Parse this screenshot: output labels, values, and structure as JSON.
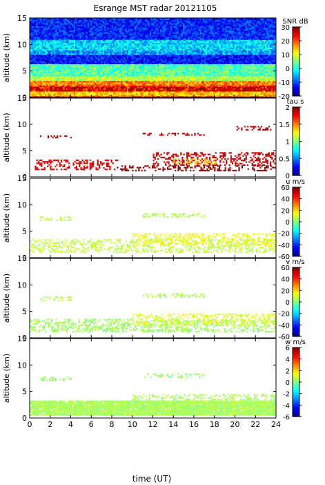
{
  "figure": {
    "title": "Esrange MST radar 20121105",
    "xlabel": "time (UT)"
  },
  "chart_data": [
    {
      "type": "heatmap",
      "quantity": "SNR",
      "colorbar_label": "SNR dB",
      "ylabel": "altitude (km)",
      "xlim": [
        0,
        24
      ],
      "ylim": [
        0,
        15
      ],
      "clim": [
        -20,
        30
      ],
      "colorbar_ticks": [
        "30",
        "20",
        "10",
        "0",
        "-10",
        "-20"
      ],
      "x_ticks": [
        "0",
        "2",
        "4",
        "6",
        "8",
        "10",
        "12",
        "14",
        "16",
        "18",
        "20",
        "22",
        "24"
      ],
      "y_ticks": [
        "0",
        "5",
        "10",
        "15"
      ],
      "colormap": "jet",
      "fill": "dense",
      "layers": [
        {
          "y_from": 0.4,
          "y_to": 1.2,
          "value": 14
        },
        {
          "y_from": 1.2,
          "y_to": 2.3,
          "value": 22
        },
        {
          "y_from": 2.3,
          "y_to": 3.2,
          "value": 17
        },
        {
          "y_from": 3.2,
          "y_to": 4.0,
          "value": 8
        },
        {
          "y_from": 4.0,
          "y_to": 6.2,
          "value": 3
        },
        {
          "y_from": 6.2,
          "y_to": 8.0,
          "value": -13
        },
        {
          "y_from": 8.0,
          "y_to": 8.8,
          "value": -6
        },
        {
          "y_from": 8.8,
          "y_to": 11.0,
          "value": -3
        },
        {
          "y_from": 11.0,
          "y_to": 15.0,
          "value": -12
        }
      ],
      "highlights": [
        {
          "x_from": 0,
          "x_to": 24,
          "y_from": 1.2,
          "y_to": 2.0,
          "value": 28
        }
      ]
    },
    {
      "type": "heatmap",
      "quantity": "tau",
      "colorbar_label": "tau s",
      "ylabel": "altitude (km)",
      "xlim": [
        0,
        24
      ],
      "ylim": [
        0,
        15
      ],
      "clim": [
        0,
        2
      ],
      "colorbar_ticks": [
        "2",
        "1.5",
        "1",
        "0.5",
        "0"
      ],
      "x_ticks": [
        "0",
        "2",
        "4",
        "6",
        "8",
        "10",
        "12",
        "14",
        "16",
        "18",
        "20",
        "22",
        "24"
      ],
      "y_ticks": [
        "0",
        "5",
        "10",
        "15"
      ],
      "colormap": "jet",
      "fill": "sparse",
      "layers": [
        {
          "y_from": 1.2,
          "y_to": 2.2,
          "x_from": 8.5,
          "x_to": 24,
          "value": 1.95
        },
        {
          "y_from": 1.4,
          "y_to": 3.3,
          "x_from": 0.5,
          "x_to": 8.5,
          "value": 1.8
        },
        {
          "y_from": 2.2,
          "y_to": 4.7,
          "x_from": 12,
          "x_to": 24,
          "value": 1.85
        },
        {
          "y_from": 2.5,
          "y_to": 3.5,
          "x_from": 14,
          "x_to": 18,
          "value": 1.35
        },
        {
          "y_from": 7.4,
          "y_to": 7.9,
          "x_from": 1,
          "x_to": 4,
          "value": 1.9
        },
        {
          "y_from": 7.9,
          "y_to": 8.4,
          "x_from": 11,
          "x_to": 17,
          "value": 1.9
        },
        {
          "y_from": 8.9,
          "y_to": 9.7,
          "x_from": 20,
          "x_to": 23.5,
          "value": 1.9
        }
      ]
    },
    {
      "type": "heatmap",
      "quantity": "u",
      "colorbar_label": "u m/s",
      "ylabel": "altitude (km)",
      "xlim": [
        0,
        24
      ],
      "ylim": [
        0,
        15
      ],
      "clim": [
        -60,
        60
      ],
      "colorbar_ticks": [
        "60",
        "40",
        "20",
        "0",
        "-20",
        "-40",
        "-60"
      ],
      "x_ticks": [
        "0",
        "2",
        "4",
        "6",
        "8",
        "10",
        "12",
        "14",
        "16",
        "18",
        "20",
        "22",
        "24"
      ],
      "y_ticks": [
        "0",
        "5",
        "10",
        "15"
      ],
      "colormap": "jet",
      "fill": "sparse",
      "layers": [
        {
          "y_from": 1.0,
          "y_to": 3.5,
          "x_from": 0,
          "x_to": 24,
          "value": 8
        },
        {
          "y_from": 2.5,
          "y_to": 4.6,
          "x_from": 10,
          "x_to": 24,
          "value": 14
        },
        {
          "y_from": 7.2,
          "y_to": 7.8,
          "x_from": 1,
          "x_to": 4,
          "value": 8
        },
        {
          "y_from": 7.8,
          "y_to": 8.4,
          "x_from": 11,
          "x_to": 17,
          "value": 6
        }
      ]
    },
    {
      "type": "heatmap",
      "quantity": "v",
      "colorbar_label": "v m/s",
      "ylabel": "altitude (km)",
      "xlim": [
        0,
        24
      ],
      "ylim": [
        0,
        15
      ],
      "clim": [
        -60,
        60
      ],
      "colorbar_ticks": [
        "60",
        "40",
        "20",
        "0",
        "-20",
        "-40",
        "-60"
      ],
      "x_ticks": [
        "0",
        "2",
        "4",
        "6",
        "8",
        "10",
        "12",
        "14",
        "16",
        "18",
        "20",
        "22",
        "24"
      ],
      "y_ticks": [
        "0",
        "5",
        "10",
        "15"
      ],
      "colormap": "jet",
      "fill": "sparse",
      "layers": [
        {
          "y_from": 1.2,
          "y_to": 3.6,
          "x_from": 0,
          "x_to": 24,
          "value": 4
        },
        {
          "y_from": 2.5,
          "y_to": 4.6,
          "x_from": 10,
          "x_to": 24,
          "value": 12
        },
        {
          "y_from": 7.2,
          "y_to": 7.8,
          "x_from": 1,
          "x_to": 4,
          "value": 6
        },
        {
          "y_from": 7.8,
          "y_to": 8.4,
          "x_from": 11,
          "x_to": 17,
          "value": 6
        }
      ]
    },
    {
      "type": "heatmap",
      "quantity": "w",
      "colorbar_label": "w m/s",
      "ylabel": "altitude (km)",
      "xlim": [
        0,
        24
      ],
      "ylim": [
        0,
        15
      ],
      "clim": [
        -6,
        6
      ],
      "colorbar_ticks": [
        "6",
        "4",
        "2",
        "0",
        "-2",
        "-4",
        "-6"
      ],
      "x_ticks": [
        "0",
        "2",
        "4",
        "6",
        "8",
        "10",
        "12",
        "14",
        "16",
        "18",
        "20",
        "22",
        "24"
      ],
      "y_ticks": [
        "0",
        "5",
        "10",
        "15"
      ],
      "colormap": "jet",
      "fill": "mixed",
      "layers": [
        {
          "y_from": 0.5,
          "y_to": 3.3,
          "x_from": 0,
          "x_to": 24,
          "value": 0.5,
          "density": 0.97
        },
        {
          "y_from": 3.3,
          "y_to": 4.5,
          "x_from": 10,
          "x_to": 24,
          "value": 0.5,
          "density": 0.35
        },
        {
          "y_from": 7.2,
          "y_to": 7.8,
          "x_from": 1,
          "x_to": 4,
          "value": 0.3,
          "density": 0.3
        },
        {
          "y_from": 7.8,
          "y_to": 8.4,
          "x_from": 11,
          "x_to": 17,
          "value": 0.3,
          "density": 0.3
        }
      ]
    }
  ]
}
